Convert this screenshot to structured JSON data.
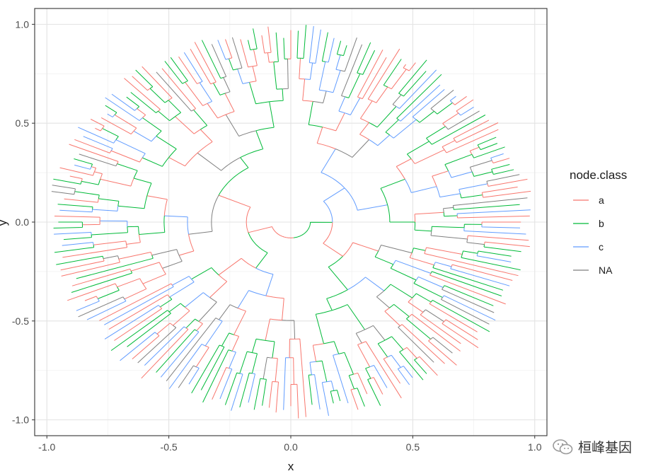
{
  "chart_data": {
    "type": "circular dendrogram",
    "xlabel": "x",
    "ylabel": "y",
    "xlim": [
      -1.05,
      1.05
    ],
    "ylim": [
      -1.08,
      1.08
    ],
    "x_ticks": [
      -1.0,
      -0.5,
      0.0,
      0.5,
      1.0
    ],
    "x_tick_labels": [
      "-1.0",
      "-0.5",
      "0.0",
      "0.5",
      "1.0"
    ],
    "y_ticks": [
      -1.0,
      -0.5,
      0.0,
      0.5,
      1.0
    ],
    "y_tick_labels": [
      "-1.0",
      "-0.5",
      "0.0",
      "0.5",
      "1.0"
    ],
    "grid": true,
    "leaf_count": 200,
    "leaf_radius_range": [
      0.92,
      1.0
    ],
    "legend": {
      "title": "node.class",
      "position": "right",
      "entries": [
        {
          "label": "a",
          "color": "#F8766D"
        },
        {
          "label": "b",
          "color": "#00BA38"
        },
        {
          "label": "c",
          "color": "#619CFF"
        },
        {
          "label": "NA",
          "color": "#7F7F7F"
        }
      ]
    }
  },
  "watermark": {
    "text": "桓峰基因",
    "icon": "wechat-icon"
  }
}
